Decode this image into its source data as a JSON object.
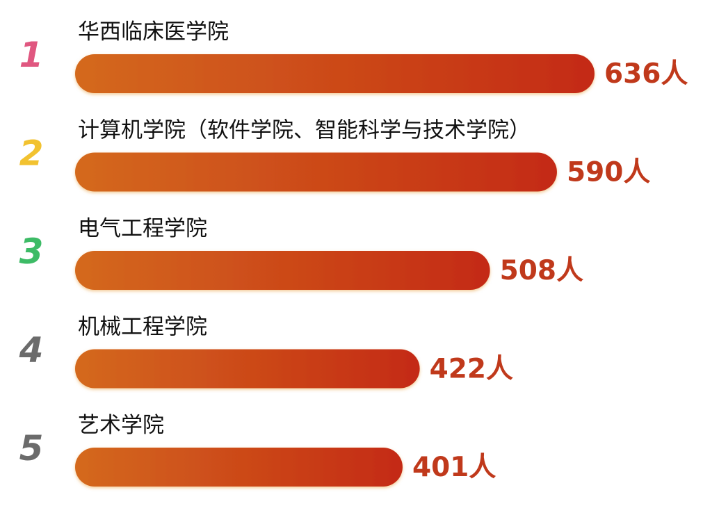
{
  "chart_data": {
    "type": "bar",
    "orientation": "horizontal",
    "categories": [
      "华西临床医学院",
      "计算机学院（软件学院、智能科学与技术学院）",
      "电气工程学院",
      "机械工程学院",
      "艺术学院"
    ],
    "ranks": [
      "1",
      "2",
      "3",
      "4",
      "5"
    ],
    "values": [
      636,
      590,
      508,
      422,
      401
    ],
    "value_labels": [
      "636人",
      "590人",
      "508人",
      "422人",
      "401人"
    ],
    "unit": "人",
    "grid": false,
    "legend": "none"
  },
  "colors": {
    "rank": [
      "#e05780",
      "#f2c230",
      "#3dbb66",
      "#6b6b6b",
      "#6b6b6b"
    ],
    "bar_gradient_start": "#d4691e",
    "bar_gradient_end": "#c42a14",
    "value_text": "#c0391b",
    "category_text": "#111111"
  }
}
